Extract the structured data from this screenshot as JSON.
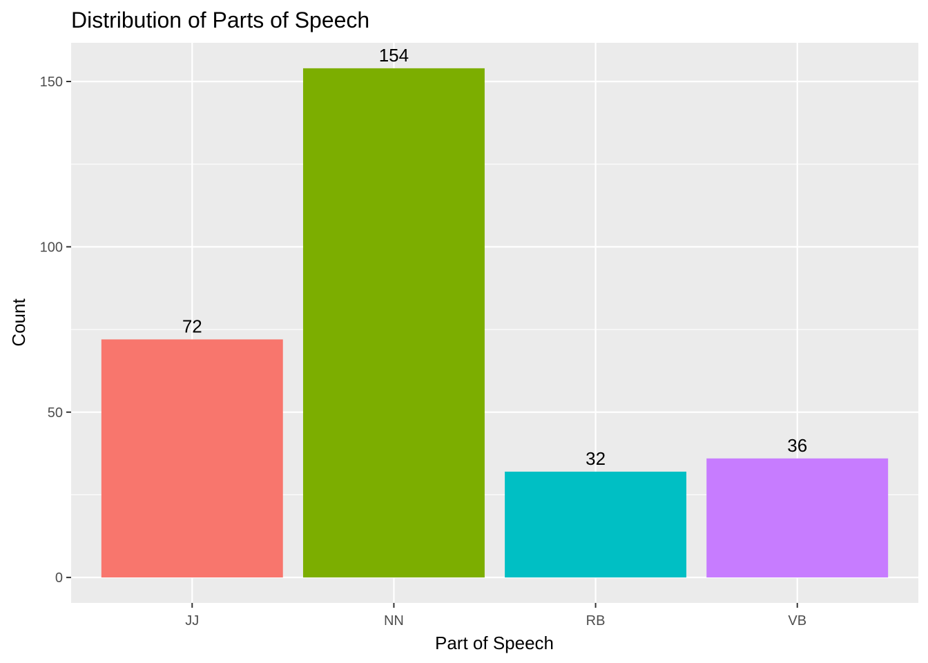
{
  "chart_data": {
    "type": "bar",
    "title": "Distribution of Parts of Speech",
    "xlabel": "Part of Speech",
    "ylabel": "Count",
    "categories": [
      "JJ",
      "NN",
      "RB",
      "VB"
    ],
    "values": [
      72,
      154,
      32,
      36
    ],
    "data_labels": [
      "72",
      "154",
      "32",
      "36"
    ],
    "colors": [
      "#F8766D",
      "#7CAE00",
      "#00BFC4",
      "#C77CFF"
    ],
    "ylim": [
      -7.7,
      161.7
    ],
    "yticks": [
      0,
      50,
      100,
      150
    ],
    "ytick_labels": [
      "0",
      "50",
      "100",
      "150"
    ],
    "grid": true,
    "legend": "none",
    "panel_background": "#EBEBEB",
    "grid_color": "#FFFFFF",
    "tick_color": "#333333"
  }
}
